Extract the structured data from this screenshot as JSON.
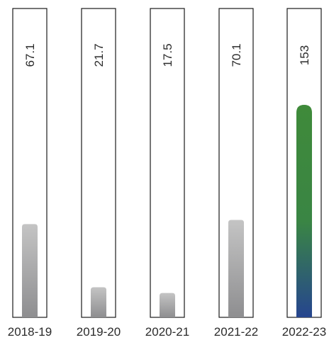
{
  "chart_data": {
    "type": "bar",
    "categories": [
      "2018-19",
      "2019-20",
      "2020-21",
      "2021-22",
      "2022-23"
    ],
    "values": [
      67.1,
      21.7,
      17.5,
      70.1,
      153
    ],
    "value_labels": [
      "67.1",
      "21.7",
      "17.5",
      "70.1",
      "153"
    ],
    "title": "",
    "xlabel": "",
    "ylabel": "",
    "grid": false,
    "colors": {
      "default_bar_top": "#c4c4c4",
      "default_bar_bottom": "#8e8e90",
      "highlight_bar_top": "#3f8a3a",
      "highlight_bar_mid": "#3a8544",
      "highlight_bar_bottom": "#26458f",
      "outline": "#1a1a1a"
    },
    "highlight_index": 4
  }
}
